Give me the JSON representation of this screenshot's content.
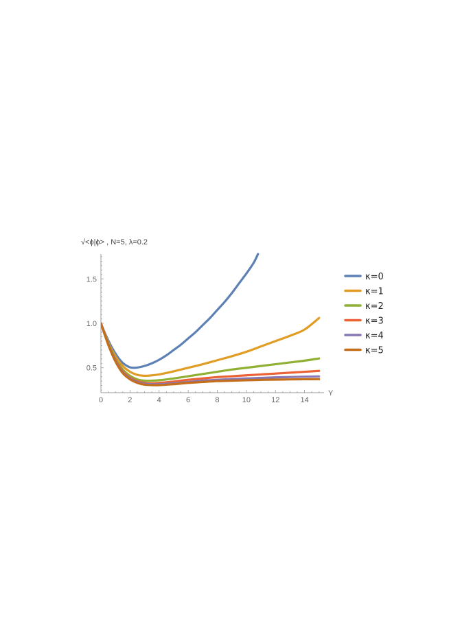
{
  "chart_data": {
    "type": "line",
    "title": "√<ϕ|ϕ> , N=5, λ=0.2",
    "xlabel": "Y",
    "ylabel": "",
    "xlim": [
      0,
      15.2
    ],
    "ylim": [
      0.22,
      1.78
    ],
    "xticks": [
      0,
      2,
      4,
      6,
      8,
      10,
      12,
      14
    ],
    "yticks": [
      0.5,
      1.0,
      1.5
    ],
    "ytick_labels": [
      "0.5",
      "1.0",
      "1.5"
    ],
    "grid": false,
    "legend_position": "right",
    "series": [
      {
        "name": "κ=0",
        "color": "#5E81B5",
        "x": [
          0,
          0.25,
          0.5,
          0.75,
          1,
          1.25,
          1.5,
          1.75,
          2,
          2.25,
          2.5,
          3,
          3.5,
          4,
          4.5,
          5,
          5.5,
          6,
          6.5,
          7,
          7.5,
          8,
          8.5,
          9,
          9.5,
          10,
          10.5,
          10.8
        ],
        "y": [
          1.0,
          0.9,
          0.81,
          0.73,
          0.66,
          0.6,
          0.555,
          0.525,
          0.505,
          0.5,
          0.502,
          0.52,
          0.55,
          0.59,
          0.64,
          0.7,
          0.76,
          0.83,
          0.9,
          0.98,
          1.06,
          1.15,
          1.24,
          1.34,
          1.45,
          1.56,
          1.68,
          1.78
        ]
      },
      {
        "name": "κ=1",
        "color": "#E19C24",
        "x": [
          0,
          0.5,
          1,
          1.5,
          2,
          2.5,
          3,
          3.5,
          4,
          5,
          6,
          7,
          8,
          9,
          10,
          11,
          12,
          13,
          14,
          15
        ],
        "y": [
          1.0,
          0.79,
          0.63,
          0.52,
          0.455,
          0.42,
          0.41,
          0.415,
          0.425,
          0.46,
          0.5,
          0.54,
          0.585,
          0.63,
          0.68,
          0.74,
          0.8,
          0.86,
          0.93,
          1.06
        ]
      },
      {
        "name": "κ=2",
        "color": "#8FB032",
        "x": [
          0,
          0.5,
          1,
          1.5,
          2,
          2.5,
          3,
          3.5,
          4,
          5,
          6,
          7,
          8,
          9,
          10,
          11,
          12,
          13,
          14,
          15
        ],
        "y": [
          1.0,
          0.78,
          0.6,
          0.48,
          0.41,
          0.37,
          0.355,
          0.355,
          0.36,
          0.38,
          0.405,
          0.43,
          0.455,
          0.48,
          0.5,
          0.52,
          0.54,
          0.56,
          0.58,
          0.605
        ]
      },
      {
        "name": "κ=3",
        "color": "#EB6235",
        "x": [
          0,
          0.5,
          1,
          1.5,
          2,
          2.5,
          3,
          3.5,
          4,
          5,
          6,
          7,
          8,
          9,
          10,
          11,
          12,
          13,
          14,
          15
        ],
        "y": [
          1.0,
          0.77,
          0.59,
          0.46,
          0.39,
          0.35,
          0.33,
          0.325,
          0.33,
          0.345,
          0.365,
          0.38,
          0.395,
          0.405,
          0.415,
          0.425,
          0.435,
          0.445,
          0.455,
          0.465
        ]
      },
      {
        "name": "κ=4",
        "color": "#8778B3",
        "x": [
          0,
          0.5,
          1,
          1.5,
          2,
          2.5,
          3,
          3.5,
          4,
          5,
          6,
          7,
          8,
          9,
          10,
          11,
          12,
          13,
          14,
          15
        ],
        "y": [
          1.0,
          0.77,
          0.58,
          0.45,
          0.38,
          0.34,
          0.32,
          0.315,
          0.315,
          0.325,
          0.34,
          0.355,
          0.365,
          0.373,
          0.38,
          0.386,
          0.392,
          0.396,
          0.4,
          0.403
        ]
      },
      {
        "name": "κ=5",
        "color": "#C56E1A",
        "x": [
          0,
          0.5,
          1,
          1.5,
          2,
          2.5,
          3,
          3.5,
          4,
          5,
          6,
          7,
          8,
          9,
          10,
          11,
          12,
          13,
          14,
          15
        ],
        "y": [
          1.0,
          0.76,
          0.57,
          0.44,
          0.37,
          0.33,
          0.31,
          0.305,
          0.305,
          0.315,
          0.33,
          0.34,
          0.35,
          0.355,
          0.36,
          0.364,
          0.367,
          0.369,
          0.371,
          0.372
        ]
      }
    ]
  }
}
